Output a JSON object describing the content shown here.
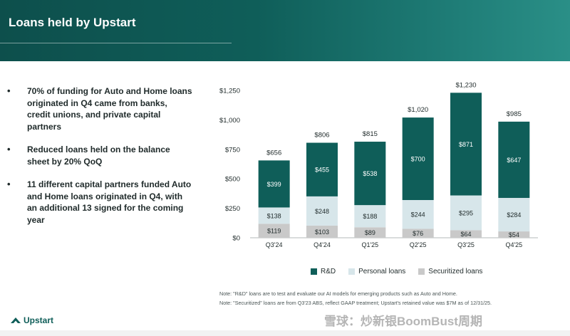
{
  "header": {
    "title": "Loans held by Upstart"
  },
  "bullets": [
    "70% of funding for Auto and Home loans originated in Q4 came from banks, credit unions, and private capital partners",
    "Reduced loans held on the balance sheet by 20% QoQ",
    "11 different capital partners funded Auto and Home loans originated in Q4, with an additional 13 signed for the coming year"
  ],
  "chart_data": {
    "type": "bar",
    "stacked": true,
    "categories": [
      "Q3'24",
      "Q4'24",
      "Q1'25",
      "Q2'25",
      "Q3'25",
      "Q4'25"
    ],
    "series": [
      {
        "name": "Securitized loans",
        "values": [
          119,
          103,
          89,
          76,
          64,
          54
        ],
        "labels": [
          "$119",
          "$103",
          "$89",
          "$76",
          "$64",
          "$54"
        ],
        "color": "#c9c9c9"
      },
      {
        "name": "Personal loans",
        "values": [
          138,
          248,
          188,
          244,
          295,
          284
        ],
        "labels": [
          "$138",
          "$248",
          "$188",
          "$244",
          "$295",
          "$284"
        ],
        "color": "#d7e6ea"
      },
      {
        "name": "R&D",
        "values": [
          399,
          455,
          538,
          700,
          871,
          647
        ],
        "labels": [
          "$399",
          "$455",
          "$538",
          "$700",
          "$871",
          "$647"
        ],
        "color": "#0f5e59"
      }
    ],
    "totals": [
      "$656",
      "$806",
      "$815",
      "$1,020",
      "$1,230",
      "$985"
    ],
    "total_values": [
      656,
      806,
      815,
      1020,
      1230,
      985
    ],
    "yticks": [
      0,
      250,
      500,
      750,
      1000,
      1250
    ],
    "ytick_labels": [
      "$0",
      "$250",
      "$500",
      "$750",
      "$1,000",
      "$1,250"
    ],
    "ylim": [
      0,
      1250
    ],
    "legend": [
      "R&D",
      "Personal loans",
      "Securitized loans"
    ],
    "legend_position": "bottom"
  },
  "notes": [
    "Note: \"R&D\" loans are to test and evaluate our AI models for emerging products such as Auto and Home.",
    "Note: \"Securitized\" loans are from Q3'23 ABS, reflect GAAP treatment; Upstart's retained value was $7M as of 12/31/25."
  ],
  "footer": {
    "logo": "Upstart",
    "watermark": "雪球：炒新银BoomBust周期"
  },
  "colors": {
    "header_dark": "#0d4f4c",
    "rd": "#0f5e59",
    "personal": "#d7e6ea",
    "securitized": "#c9c9c9"
  }
}
